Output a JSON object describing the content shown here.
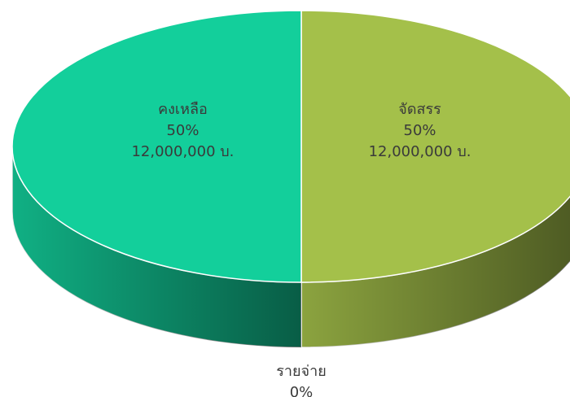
{
  "chart_data": {
    "type": "pie3d",
    "categories": [
      "จัดสรร",
      "รายจ่าย",
      "คงเหลือ"
    ],
    "values": [
      50,
      0,
      50
    ],
    "value_labels": [
      "50%",
      "0%",
      "50%"
    ],
    "amounts": [
      12000000,
      null,
      12000000
    ],
    "amount_labels": [
      "12,000,000 บ.",
      null,
      "12,000,000 บ."
    ],
    "colors": [
      "#a4c04a",
      "#7f8c3a",
      "#13cf9b"
    ]
  }
}
